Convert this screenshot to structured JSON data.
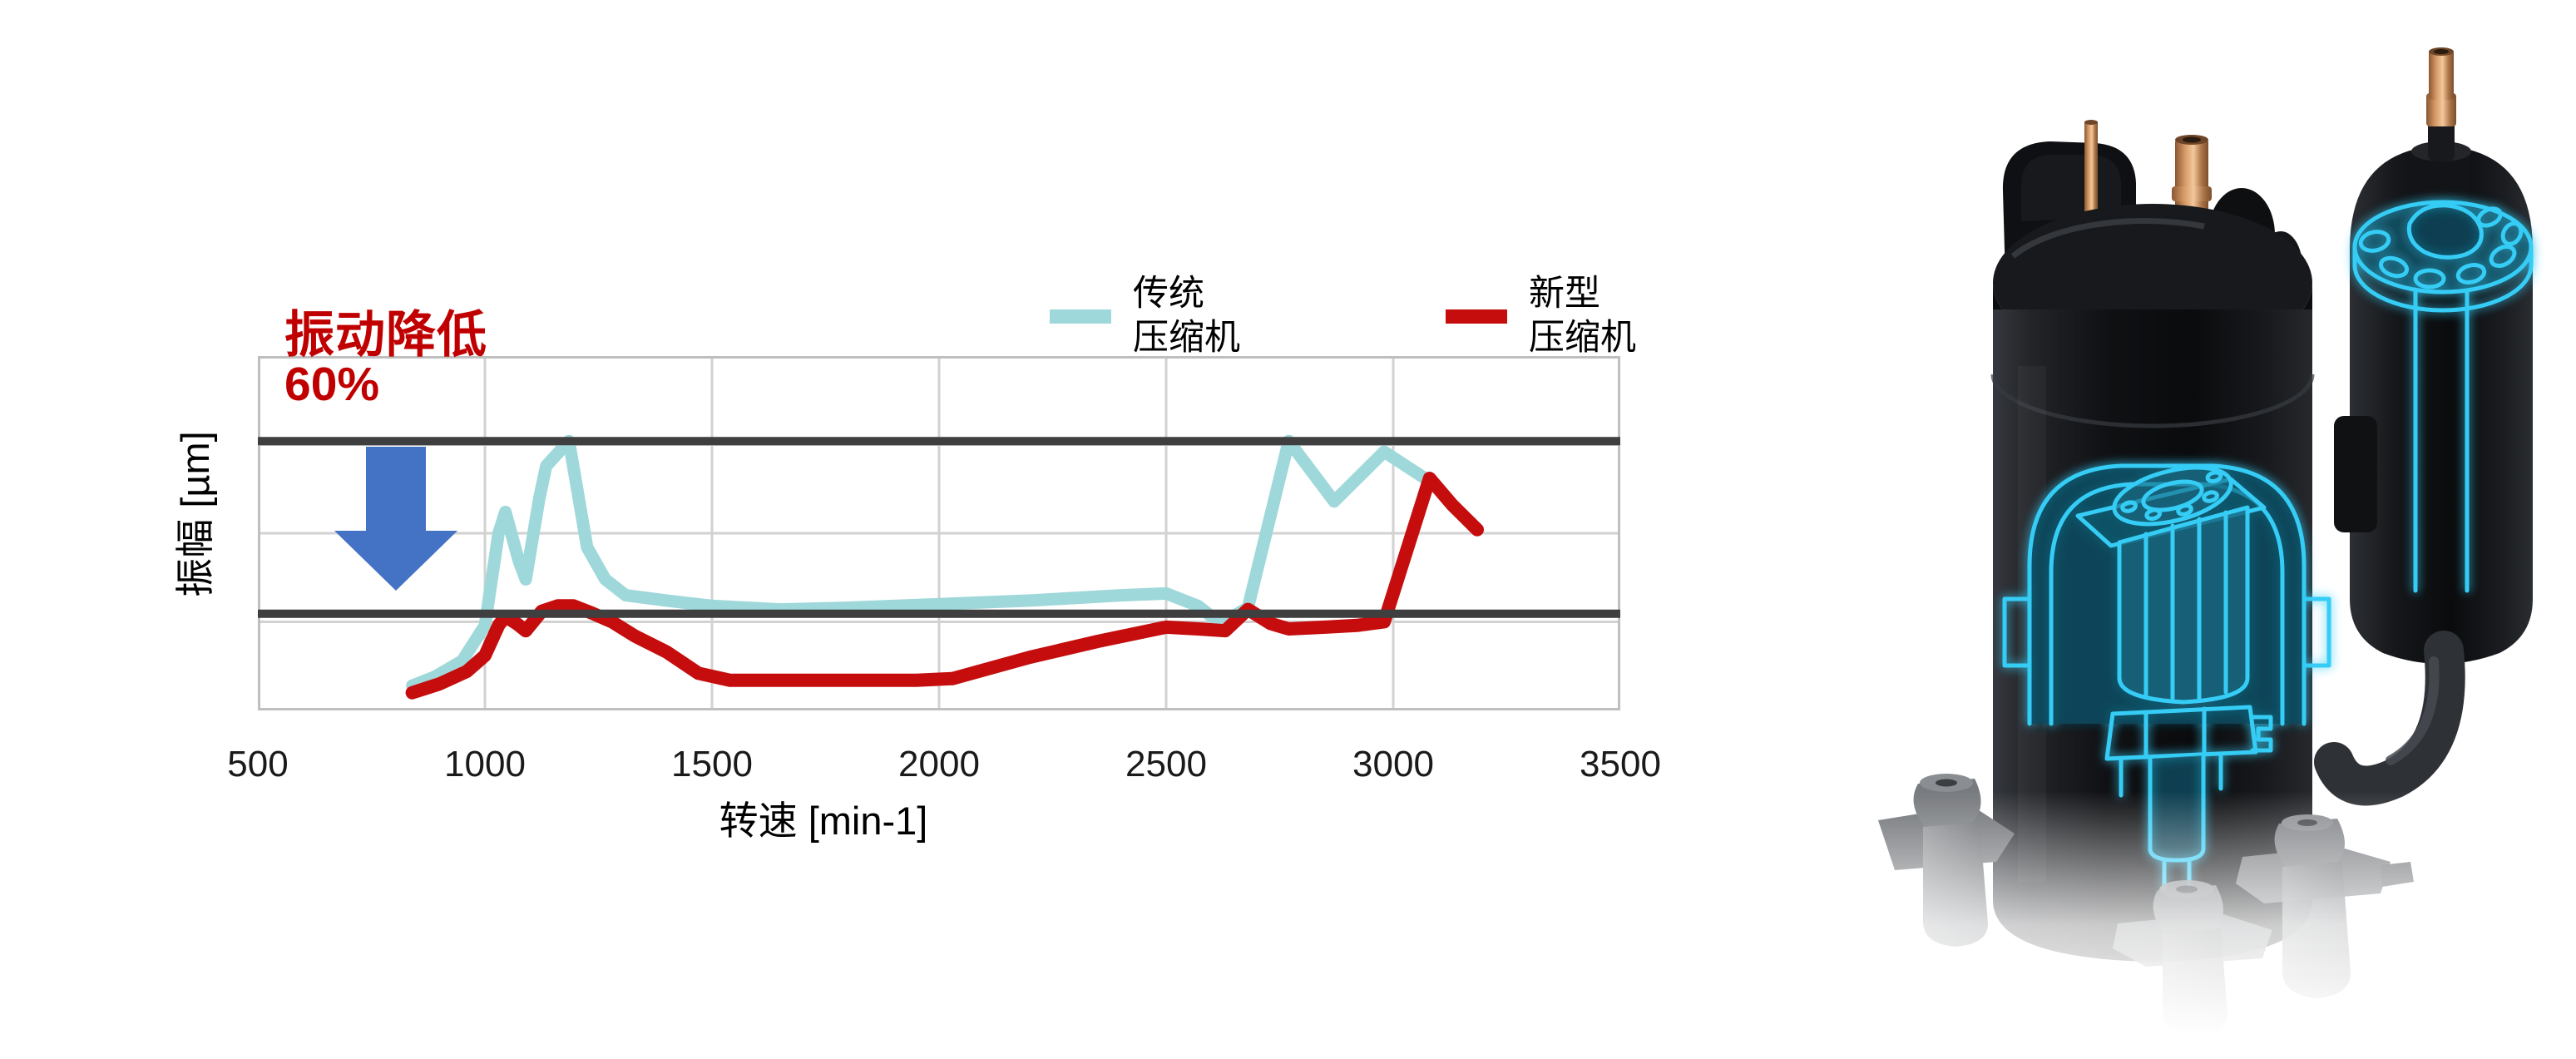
{
  "colors": {
    "background": "#ffffff",
    "traditional_series": "#9fd8da",
    "new_series": "#c60d0e",
    "reference_line": "#3f3f3f",
    "gridline": "#d2d2d2",
    "plot_border": "#bfbfbf",
    "arrow_blue": "#4472c4",
    "annotation_red": "#c00000",
    "axis_text": "#1a1a1a",
    "wireframe_cyan": "#36cdf6",
    "copper": "#c08552",
    "compressor_body": "#131518",
    "foot_gray": "#797c80"
  },
  "chart": {
    "annotation": {
      "line1": "振动降低",
      "line2": "60%"
    },
    "legend": [
      {
        "line1": "传统",
        "line2": "压缩机"
      },
      {
        "line1": "新型",
        "line2": "压缩机"
      }
    ],
    "x_axis": {
      "title": "转速 [min-1]"
    },
    "y_axis": {
      "title": "振幅  [µm]"
    }
  },
  "chart_data": {
    "type": "line",
    "title": "",
    "xlabel": "转速 [min-1]",
    "ylabel": "振幅 [µm]",
    "xlim": [
      500,
      3500
    ],
    "ylim": [
      0,
      100
    ],
    "x_ticks": [
      500,
      1000,
      1500,
      2000,
      2500,
      3000,
      3500
    ],
    "y_gridlines": [
      25,
      50,
      75
    ],
    "grid": true,
    "legend_position": "top",
    "y_axis_numeric_labels": false,
    "reference_lines": [
      {
        "y": 76,
        "meaning": "traditional compressor peak vibration level"
      },
      {
        "y": 27.3,
        "meaning": "new compressor peak vibration level (≈60% lower)"
      }
    ],
    "annotation": {
      "text": "振动降低 60%",
      "arrow": "down"
    },
    "series": [
      {
        "name": "传统压缩机",
        "color": "#9fd8da",
        "stroke_width": 15,
        "points": [
          [
            840,
            7
          ],
          [
            890,
            9.5
          ],
          [
            950,
            14
          ],
          [
            1000,
            24
          ],
          [
            1030,
            50
          ],
          [
            1045,
            56
          ],
          [
            1075,
            42
          ],
          [
            1090,
            37
          ],
          [
            1120,
            60
          ],
          [
            1135,
            69
          ],
          [
            1185,
            76
          ],
          [
            1225,
            46
          ],
          [
            1265,
            37
          ],
          [
            1310,
            32.5
          ],
          [
            1400,
            31
          ],
          [
            1500,
            29.5
          ],
          [
            1650,
            28.5
          ],
          [
            1800,
            29
          ],
          [
            2000,
            30
          ],
          [
            2200,
            31
          ],
          [
            2400,
            32.5
          ],
          [
            2500,
            33
          ],
          [
            2570,
            29.5
          ],
          [
            2620,
            24.5
          ],
          [
            2680,
            29
          ],
          [
            2770,
            76
          ],
          [
            2870,
            59
          ],
          [
            2980,
            73
          ],
          [
            3070,
            65.5
          ]
        ]
      },
      {
        "name": "新型压缩机",
        "color": "#c60d0e",
        "stroke_width": 16,
        "points": [
          [
            840,
            5
          ],
          [
            900,
            7.5
          ],
          [
            960,
            11
          ],
          [
            1000,
            15.5
          ],
          [
            1030,
            24
          ],
          [
            1045,
            26.5
          ],
          [
            1070,
            24.5
          ],
          [
            1090,
            22.5
          ],
          [
            1125,
            28
          ],
          [
            1160,
            29.5
          ],
          [
            1195,
            29.5
          ],
          [
            1235,
            27.5
          ],
          [
            1280,
            25
          ],
          [
            1330,
            21
          ],
          [
            1400,
            16.5
          ],
          [
            1470,
            10.5
          ],
          [
            1540,
            8.5
          ],
          [
            1750,
            8.5
          ],
          [
            1950,
            8.5
          ],
          [
            2030,
            9
          ],
          [
            2200,
            15
          ],
          [
            2350,
            19.5
          ],
          [
            2500,
            23.5
          ],
          [
            2570,
            23
          ],
          [
            2630,
            22.5
          ],
          [
            2680,
            28.5
          ],
          [
            2730,
            24.5
          ],
          [
            2770,
            23
          ],
          [
            2850,
            23.5
          ],
          [
            2920,
            24
          ],
          [
            2980,
            25
          ],
          [
            3080,
            65.5
          ],
          [
            3130,
            58
          ],
          [
            3185,
            51
          ]
        ]
      }
    ]
  }
}
